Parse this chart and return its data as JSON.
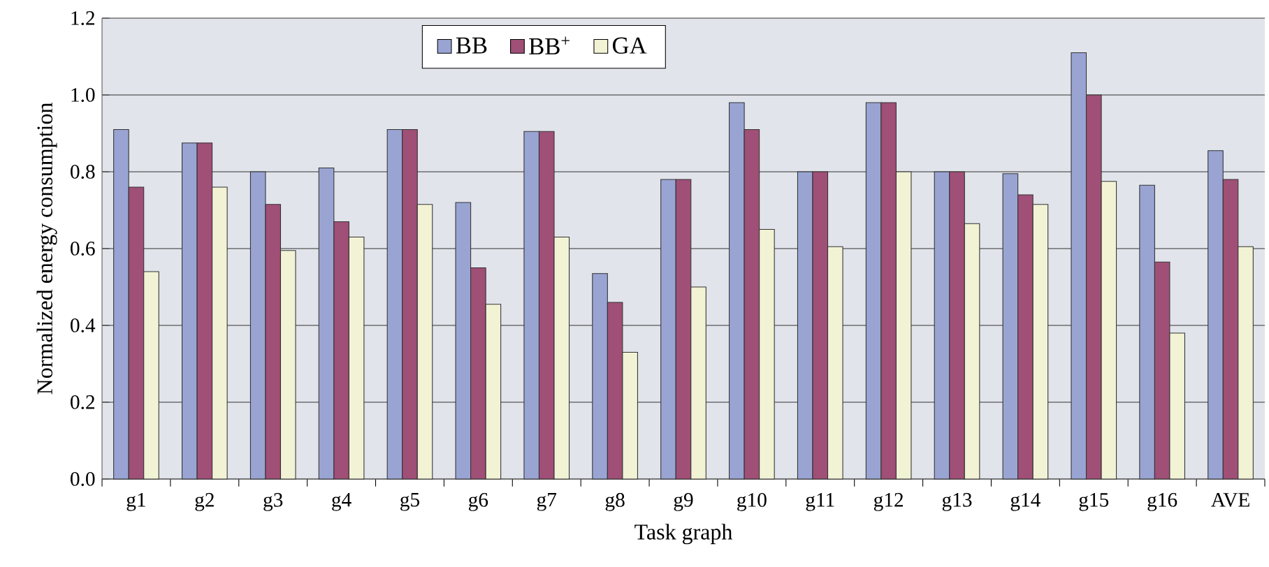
{
  "chart_data": {
    "type": "bar",
    "xlabel": "Task graph",
    "ylabel": "Normalized energy consumption",
    "categories": [
      "g1",
      "g2",
      "g3",
      "g4",
      "g5",
      "g6",
      "g7",
      "g8",
      "g9",
      "g10",
      "g11",
      "g12",
      "g13",
      "g14",
      "g15",
      "g16",
      "AVE"
    ],
    "series": [
      {
        "name": "BB",
        "color": "#99a4d3",
        "values": [
          0.91,
          0.875,
          0.8,
          0.81,
          0.91,
          0.72,
          0.905,
          0.535,
          0.78,
          0.98,
          0.8,
          0.98,
          0.8,
          0.795,
          1.11,
          0.765,
          0.855
        ]
      },
      {
        "name": "BB$^{+}$",
        "color": "#a04f77",
        "values": [
          0.76,
          0.875,
          0.715,
          0.67,
          0.91,
          0.55,
          0.905,
          0.46,
          0.78,
          0.91,
          0.8,
          0.98,
          0.8,
          0.74,
          1.0,
          0.565,
          0.78
        ]
      },
      {
        "name": "GA",
        "color": "#f2f2d5",
        "values": [
          0.54,
          0.76,
          0.595,
          0.63,
          0.715,
          0.455,
          0.63,
          0.33,
          0.5,
          0.65,
          0.605,
          0.8,
          0.665,
          0.715,
          0.775,
          0.38,
          0.605
        ]
      }
    ],
    "ylim": [
      0,
      1.2
    ],
    "yticks": [
      {
        "value": 0,
        "label": "0.0"
      },
      {
        "value": 0.2,
        "label": "0.2"
      },
      {
        "value": 0.4,
        "label": "0.4"
      },
      {
        "value": 0.6,
        "label": "0.6"
      },
      {
        "value": 0.8,
        "label": "0.8"
      },
      {
        "value": 1.0,
        "label": "1.0"
      },
      {
        "value": 1.2,
        "label": "1.2"
      }
    ],
    "grid": "y",
    "legend": "top"
  }
}
